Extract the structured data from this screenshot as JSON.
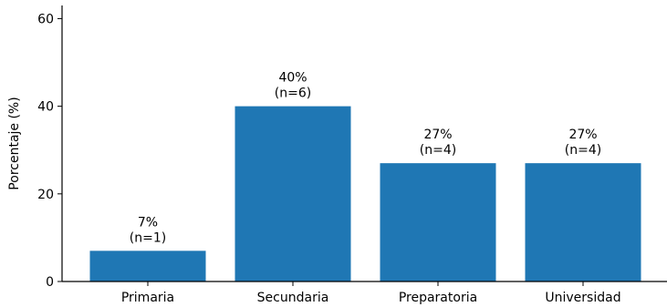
{
  "chart_data": {
    "type": "bar",
    "ylabel": "Porcentaje (%)",
    "ylim": [
      0,
      63
    ],
    "yticks": [
      0,
      20,
      40,
      60
    ],
    "bar_color": "#1f77b4",
    "categories": [
      "Primaria",
      "Secundaria",
      "Preparatoria",
      "Universidad"
    ],
    "values": [
      7,
      40,
      27,
      27
    ],
    "value_labels": [
      "7%",
      "40%",
      "27%",
      "27%"
    ],
    "count_labels": [
      "(n=1)",
      "(n=6)",
      "(n=4)",
      "(n=4)"
    ],
    "grid": false
  }
}
